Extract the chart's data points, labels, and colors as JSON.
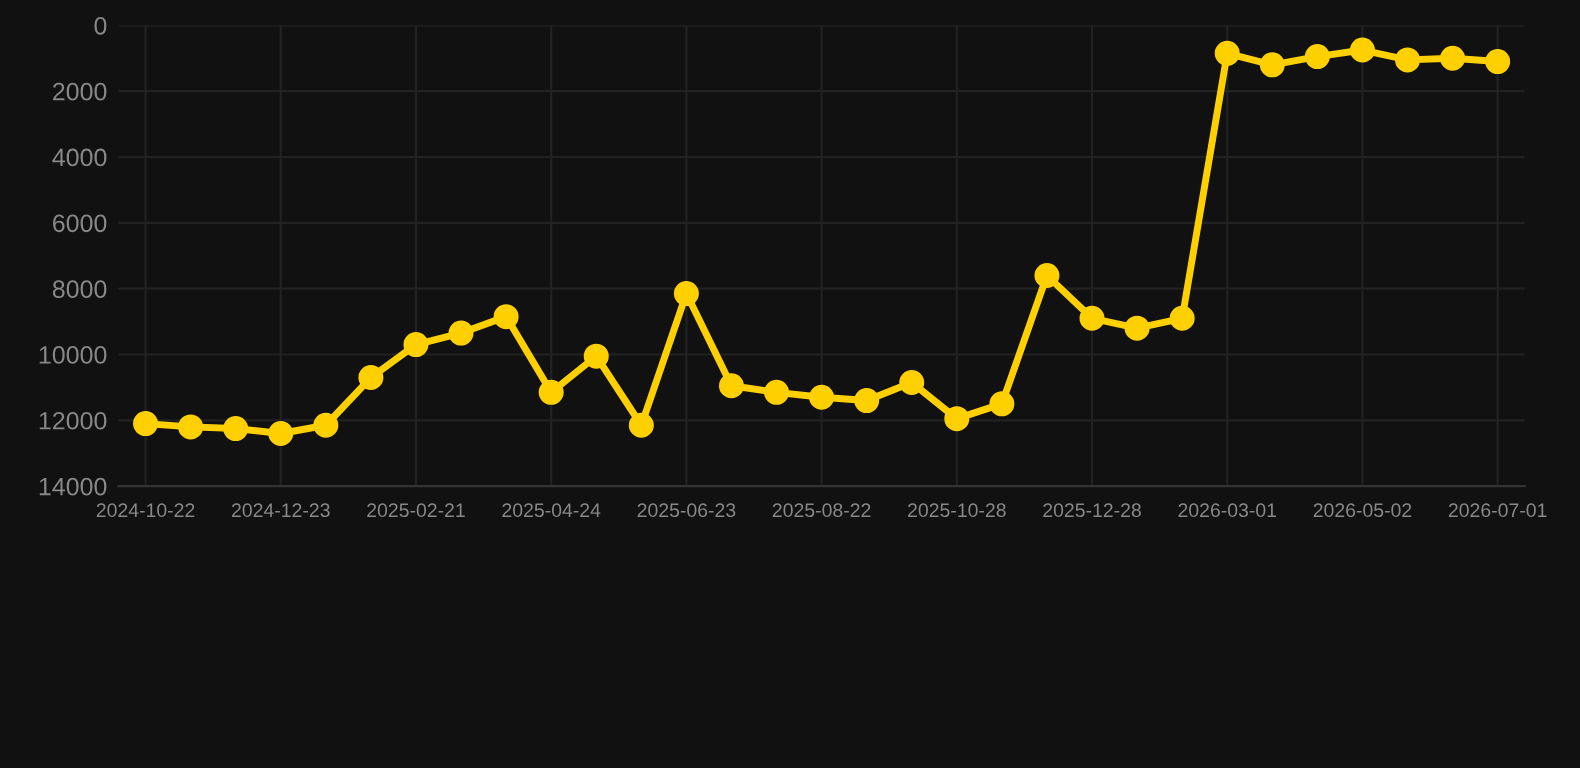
{
  "chart_data": {
    "type": "line",
    "categories": [
      "2024-10-22",
      null,
      null,
      "2024-12-23",
      null,
      null,
      "2025-02-21",
      null,
      null,
      "2025-04-24",
      null,
      null,
      "2025-06-23",
      null,
      null,
      "2025-08-22",
      null,
      null,
      "2025-10-28",
      null,
      null,
      "2025-12-28",
      null,
      null,
      "2026-03-01",
      null,
      null,
      "2026-05-02",
      null,
      null,
      "2026-07-01"
    ],
    "series": [
      {
        "color": "#ffd000",
        "values": [
          12100,
          12200,
          12250,
          12400,
          12150,
          10700,
          9700,
          9350,
          8850,
          11150,
          10050,
          12150,
          8150,
          10950,
          11150,
          11300,
          11400,
          10850,
          11950,
          11500,
          7600,
          8900,
          9200,
          8900,
          850,
          1200,
          950,
          750,
          1050,
          1000,
          1100
        ]
      }
    ],
    "ylim": [
      14000,
      0
    ],
    "yticks": [
      0,
      2000,
      4000,
      6000,
      8000,
      10000,
      12000,
      14000
    ],
    "grid": true,
    "marker": "circle",
    "line_style": "solid"
  }
}
